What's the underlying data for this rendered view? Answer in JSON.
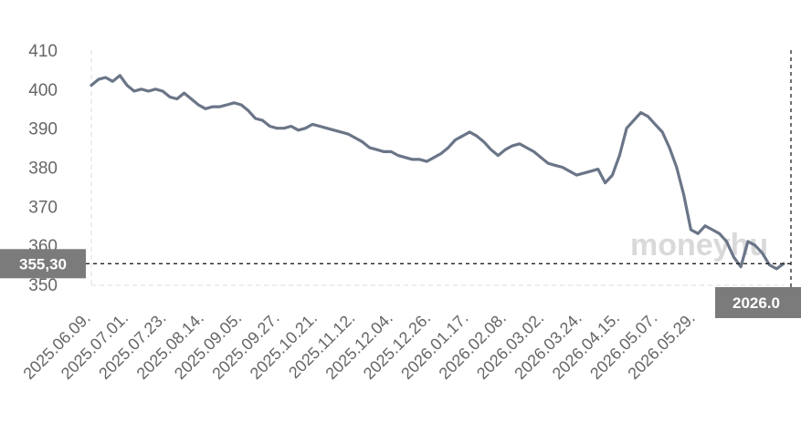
{
  "chart_data": {
    "type": "line",
    "title": "",
    "xlabel": "",
    "ylabel": "",
    "ylim": [
      350,
      410
    ],
    "y_ticks": [
      "410",
      "400",
      "390",
      "380",
      "370",
      "360",
      "350"
    ],
    "x_tick_labels": [
      "2025.06.09.",
      "2025.07.01.",
      "2025.07.23.",
      "2025.08.14.",
      "2025.09.05.",
      "2025.09.27.",
      "2025.10.21.",
      "2025.11.12.",
      "2025.12.04.",
      "2025.12.26.",
      "2026.01.17.",
      "2026.02.08.",
      "2026.03.02.",
      "2026.03.24.",
      "2026.04.15.",
      "2026.05.07.",
      "2026.05.29."
    ],
    "x": [
      "2025.06.09.",
      "2025.06.12.",
      "2025.06.16.",
      "2025.06.19.",
      "2025.06.23.",
      "2025.06.26.",
      "2025.07.01.",
      "2025.07.04.",
      "2025.07.08.",
      "2025.07.11.",
      "2025.07.15.",
      "2025.07.18.",
      "2025.07.23.",
      "2025.07.26.",
      "2025.07.30.",
      "2025.08.02.",
      "2025.08.06.",
      "2025.08.10.",
      "2025.08.14.",
      "2025.08.18.",
      "2025.08.22.",
      "2025.08.26.",
      "2025.08.30.",
      "2025.09.02.",
      "2025.09.05.",
      "2025.09.09.",
      "2025.09.13.",
      "2025.09.17.",
      "2025.09.21.",
      "2025.09.24.",
      "2025.09.27.",
      "2025.10.01.",
      "2025.10.05.",
      "2025.10.09.",
      "2025.10.13.",
      "2025.10.17.",
      "2025.10.21.",
      "2025.10.25.",
      "2025.10.29.",
      "2025.11.02.",
      "2025.11.06.",
      "2025.11.09.",
      "2025.11.12.",
      "2025.11.16.",
      "2025.11.20.",
      "2025.11.24.",
      "2025.11.28.",
      "2025.12.01.",
      "2025.12.04.",
      "2025.12.08.",
      "2025.12.12.",
      "2025.12.16.",
      "2025.12.20.",
      "2025.12.23.",
      "2025.12.26.",
      "2025.12.30.",
      "2026.01.03.",
      "2026.01.07.",
      "2026.01.11.",
      "2026.01.14.",
      "2026.01.17.",
      "2026.01.21.",
      "2026.01.25.",
      "2026.01.29.",
      "2026.02.02.",
      "2026.02.05.",
      "2026.02.08.",
      "2026.02.12.",
      "2026.02.16.",
      "2026.02.20.",
      "2026.02.24.",
      "2026.02.27.",
      "2026.03.02.",
      "2026.03.06.",
      "2026.03.10.",
      "2026.03.14.",
      "2026.03.18.",
      "2026.03.21.",
      "2026.03.24.",
      "2026.03.28.",
      "2026.04.01.",
      "2026.04.05.",
      "2026.04.09.",
      "2026.04.12.",
      "2026.04.15.",
      "2026.04.19.",
      "2026.04.23.",
      "2026.04.27.",
      "2026.05.01.",
      "2026.05.04.",
      "2026.05.07.",
      "2026.05.11.",
      "2026.05.15.",
      "2026.05.19.",
      "2026.05.23.",
      "2026.05.26.",
      "2026.05.29.",
      "2026.06.01."
    ],
    "series": [
      {
        "values": [
          401.0,
          402.5,
          403.0,
          402.0,
          403.5,
          401.0,
          399.5,
          400.0,
          399.5,
          400.0,
          399.5,
          398.0,
          397.5,
          399.0,
          397.5,
          396.0,
          395.0,
          395.5,
          395.5,
          396.0,
          396.5,
          396.0,
          394.5,
          392.5,
          392.0,
          390.5,
          390.0,
          390.0,
          390.5,
          389.5,
          390.0,
          391.0,
          390.5,
          390.0,
          389.5,
          389.0,
          388.5,
          387.5,
          386.5,
          385.0,
          384.5,
          384.0,
          384.0,
          383.0,
          382.5,
          382.0,
          382.0,
          381.5,
          382.5,
          383.5,
          385.0,
          387.0,
          388.0,
          389.0,
          388.0,
          386.5,
          384.5,
          383.0,
          384.5,
          385.5,
          386.0,
          385.0,
          384.0,
          382.5,
          381.0,
          380.5,
          380.0,
          379.0,
          378.0,
          378.5,
          379.0,
          379.5,
          376.0,
          378.0,
          383.0,
          390.0,
          392.0,
          394.0,
          393.0,
          391.0,
          389.0,
          385.0,
          380.0,
          373.0,
          364.0,
          363.0,
          365.0,
          364.0,
          363.0,
          361.0,
          357.0,
          354.5,
          361.0,
          360.0,
          358.0,
          355.0,
          354.0,
          355.3
        ]
      }
    ],
    "last_value_label": "355,30",
    "last_date_label": "2026.0",
    "line_color": "#6b7588",
    "watermark": "moneyhu"
  }
}
